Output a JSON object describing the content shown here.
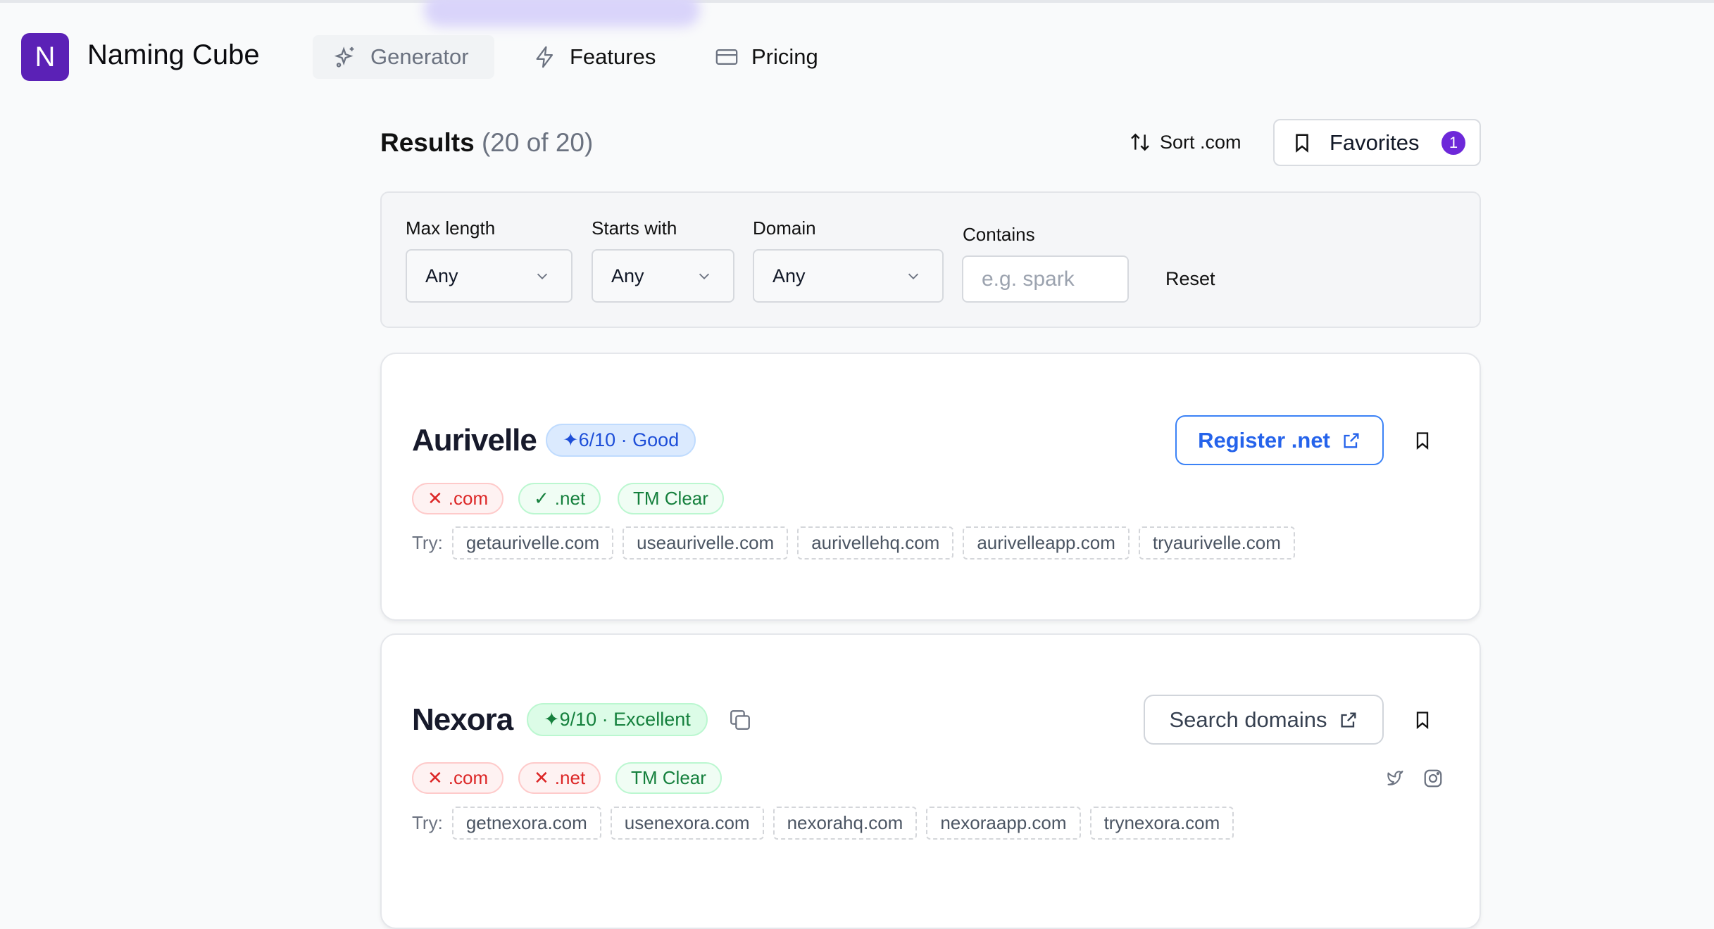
{
  "colors": {
    "brand": "#5b21b6",
    "accent": "#6d28d9",
    "favorites_badge": "#6d28d9"
  },
  "header": {
    "logo_letter": "N",
    "brand": "Naming Cube",
    "nav": [
      {
        "label": "Generator",
        "icon": "sparkles-icon",
        "active": true
      },
      {
        "label": "Features",
        "icon": "lightning-icon"
      },
      {
        "label": "Pricing",
        "icon": "credit-card-icon"
      }
    ]
  },
  "results": {
    "title": "Results",
    "count": "(20 of 20)",
    "sort_label": "Sort .com",
    "favorites_label": "Favorites",
    "favorites_count": "1"
  },
  "filters": {
    "max_length": {
      "label": "Max length",
      "value": "Any"
    },
    "starts_with": {
      "label": "Starts with",
      "value": "Any"
    },
    "domain": {
      "label": "Domain",
      "value": "Any"
    },
    "contains": {
      "label": "Contains",
      "placeholder": "e.g. spark",
      "value": ""
    },
    "reset": "Reset"
  },
  "cards": [
    {
      "name": "Aurivelle",
      "score": "✦6/10 · Good",
      "action": "Register .net",
      "chips": [
        {
          "label": ".com",
          "status": "unavailable"
        },
        {
          "label": ".net",
          "status": "available"
        },
        {
          "label": "TM Clear",
          "status": "clear"
        }
      ],
      "try_label": "Try:",
      "suggestions": [
        "getaurivelle.com",
        "useaurivelle.com",
        "aurivellehq.com",
        "aurivelleapp.com",
        "tryaurivelle.com"
      ]
    },
    {
      "name": "Nexora",
      "score": "✦9/10 · Excellent",
      "action": "Search domains",
      "chips": [
        {
          "label": ".com",
          "status": "unavailable"
        },
        {
          "label": ".net",
          "status": "unavailable"
        },
        {
          "label": "TM Clear",
          "status": "clear"
        }
      ],
      "try_label": "Try:",
      "suggestions": [
        "getnexora.com",
        "usenexora.com",
        "nexorahq.com",
        "nexoraapp.com",
        "trynexora.com"
      ]
    }
  ]
}
